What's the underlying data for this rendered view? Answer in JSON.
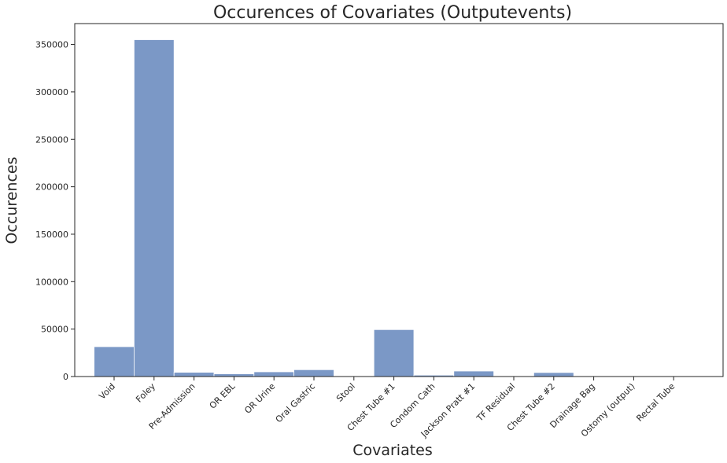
{
  "chart_data": {
    "type": "bar",
    "title": "Occurences of Covariates (Outputevents)",
    "xlabel": "Covariates",
    "ylabel": "Occurences",
    "categories": [
      "Void",
      "Foley",
      "Pre-Admission",
      "OR EBL",
      "OR Urine",
      "Oral Gastric",
      "Stool",
      "Chest Tube #1",
      "Condom Cath",
      "Jackson Pratt #1",
      "TF Residual",
      "Chest Tube #2",
      "Drainage Bag",
      "Ostomy (output)",
      "Rectal Tube"
    ],
    "values": [
      31500,
      355000,
      4500,
      2800,
      5000,
      7200,
      300,
      49500,
      1500,
      5800,
      300,
      4200,
      300,
      300,
      300
    ],
    "ylim": [
      0,
      372000
    ],
    "yticks": [
      0,
      50000,
      100000,
      150000,
      200000,
      250000,
      300000,
      350000
    ],
    "grid": false,
    "legend": "none",
    "bar_color": "#7b98c6",
    "bar_edge_color": "#ffffff"
  }
}
